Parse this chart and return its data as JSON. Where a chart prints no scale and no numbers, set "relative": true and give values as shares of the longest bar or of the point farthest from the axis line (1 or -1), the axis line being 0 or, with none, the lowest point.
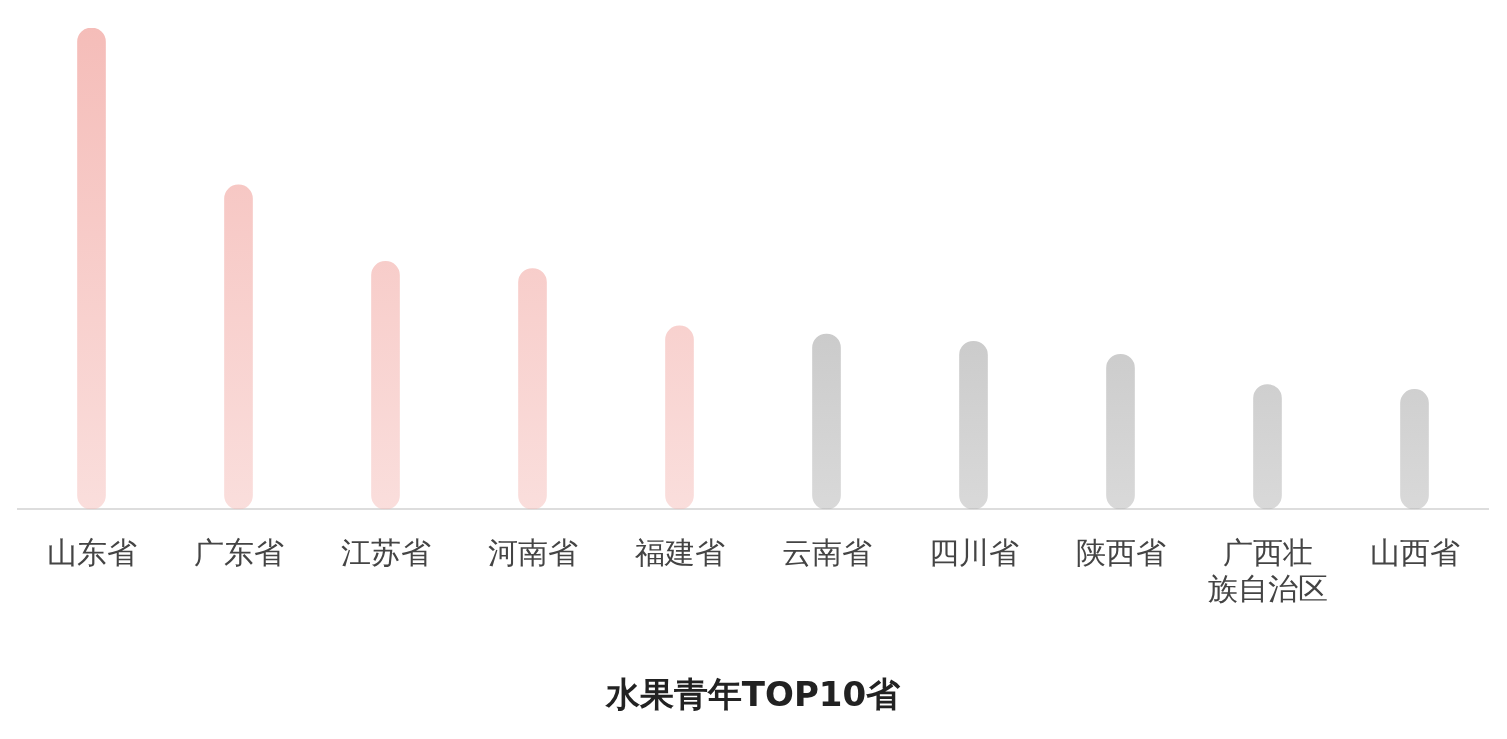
{
  "chart_data": {
    "type": "bar",
    "title": "水果青年TOP10省",
    "relative": true,
    "categories": [
      "山东省",
      "广东省",
      "江苏省",
      "河南省",
      "福建省",
      "云南省",
      "四川省",
      "陕西省",
      "广西壮族自治区",
      "山西省"
    ],
    "values": [
      1,
      0.674,
      0.515,
      0.5,
      0.381,
      0.364,
      0.349,
      0.322,
      0.259,
      0.249
    ],
    "colors": [
      "#f5bdb9",
      "#f5bdb9",
      "#f5bdb9",
      "#f5bdb9",
      "#f5bdb9",
      "#b3b3b3",
      "#b3b3b3",
      "#b3b3b3",
      "#b3b3b3",
      "#b3b3b3"
    ],
    "legend": false
  }
}
